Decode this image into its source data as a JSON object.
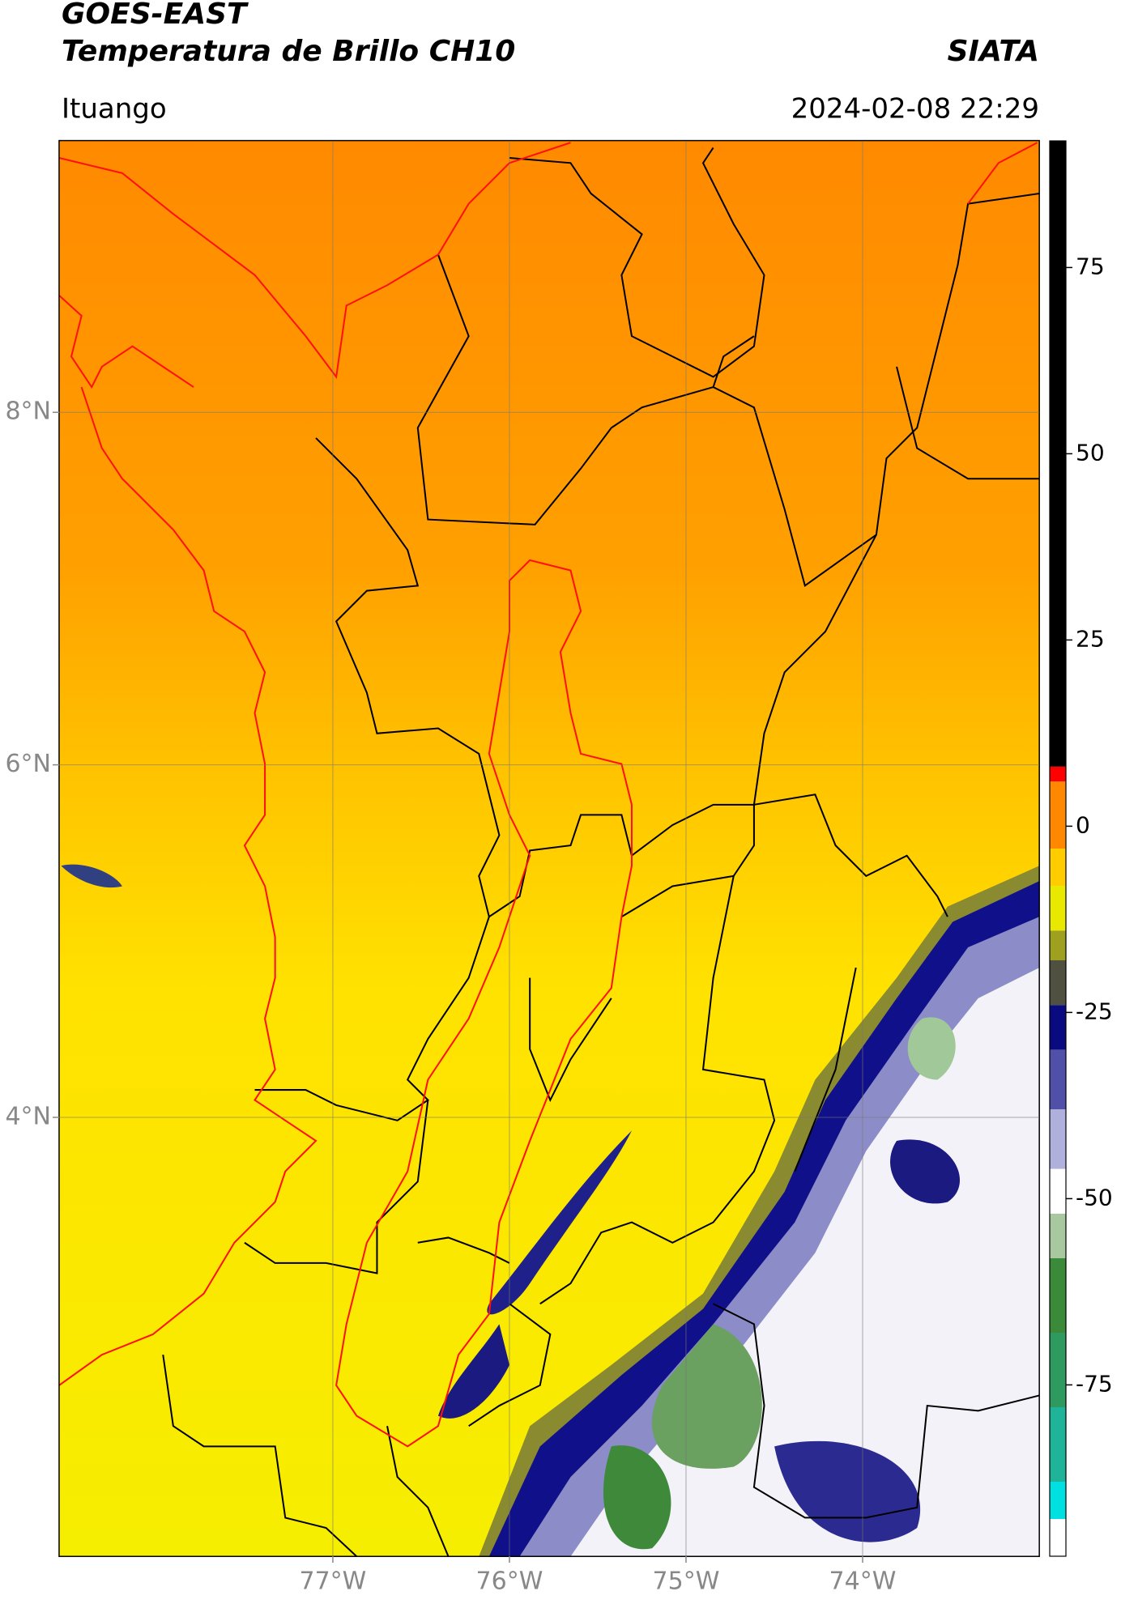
{
  "header": {
    "title": "GOES-EAST",
    "subtitle": "Temperatura de Brillo CH10",
    "source": "SIATA",
    "location": "Ituango",
    "datetime": "2024-02-08 22:29"
  },
  "chart_data": {
    "type": "map",
    "xlim": [
      -78.55,
      -73.0
    ],
    "ylim": [
      1.51,
      9.54
    ],
    "xticks": [
      {
        "value": -77,
        "label": "77°W"
      },
      {
        "value": -76,
        "label": "76°W"
      },
      {
        "value": -75,
        "label": "75°W"
      },
      {
        "value": -74,
        "label": "74°W"
      }
    ],
    "yticks": [
      {
        "value": 8,
        "label": "8°N"
      },
      {
        "value": 6,
        "label": "6°N"
      },
      {
        "value": 4,
        "label": "4°N"
      }
    ],
    "grid": true,
    "colorbar": {
      "lim": [
        -98,
        92
      ],
      "ticks": [
        75,
        50,
        25,
        0,
        -25,
        -50,
        -75
      ],
      "segments": [
        {
          "from": -98,
          "to": -93,
          "color": "#ffffff"
        },
        {
          "from": -93,
          "to": -88,
          "color": "#00e0e0"
        },
        {
          "from": -88,
          "to": -78,
          "color": "#1fb39a"
        },
        {
          "from": -78,
          "to": -68,
          "color": "#2e9a60"
        },
        {
          "from": -68,
          "to": -58,
          "color": "#3a8a3a"
        },
        {
          "from": -58,
          "to": -52,
          "color": "#a8c8a0"
        },
        {
          "from": -52,
          "to": -46,
          "color": "#ffffff"
        },
        {
          "from": -46,
          "to": -38,
          "color": "#b0b0dc"
        },
        {
          "from": -38,
          "to": -30,
          "color": "#5050a8"
        },
        {
          "from": -30,
          "to": -24,
          "color": "#0a0a80"
        },
        {
          "from": -24,
          "to": -18,
          "color": "#505040"
        },
        {
          "from": -18,
          "to": -14,
          "color": "#a0a020"
        },
        {
          "from": -14,
          "to": -8,
          "color": "#e8e800"
        },
        {
          "from": -8,
          "to": -3,
          "color": "#ffcc00"
        },
        {
          "from": -3,
          "to": 6,
          "color": "#ff8800"
        },
        {
          "from": 6,
          "to": 8,
          "color": "#ff0000"
        },
        {
          "from": 8,
          "to": 92,
          "color": "#000000"
        }
      ]
    }
  }
}
